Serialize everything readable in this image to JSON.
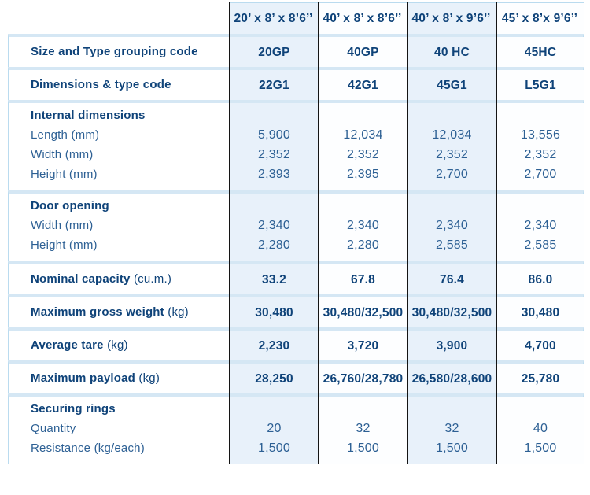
{
  "header": {
    "columns": [
      "20’ x 8’ x 8’6’’",
      "40’ x 8’ x 8’6’’",
      "40’ x 8’ x 9’6’’",
      "45’ x 8’x 9’6’’"
    ]
  },
  "rows": [
    {
      "type": "simple",
      "label": "Size and Type grouping code",
      "suffix": "",
      "bold_values": true,
      "values": [
        "20GP",
        "40GP",
        "40 HC",
        "45HC"
      ]
    },
    {
      "type": "simple",
      "label": "Dimensions & type code",
      "suffix": "",
      "bold_values": true,
      "values": [
        "22G1",
        "42G1",
        "45G1",
        "L5G1"
      ]
    },
    {
      "type": "group",
      "title": "Internal dimensions",
      "sub": [
        {
          "label": "Length (mm)",
          "values": [
            "5,900",
            "12,034",
            "12,034",
            "13,556"
          ]
        },
        {
          "label": "Width (mm)",
          "values": [
            "2,352",
            "2,352",
            "2,352",
            "2,352"
          ]
        },
        {
          "label": "Height (mm)",
          "values": [
            "2,393",
            "2,395",
            "2,700",
            "2,700"
          ]
        }
      ]
    },
    {
      "type": "group",
      "title": "Door opening",
      "sub": [
        {
          "label": "Width (mm)",
          "values": [
            "2,340",
            "2,340",
            "2,340",
            "2,340"
          ]
        },
        {
          "label": "Height (mm)",
          "values": [
            "2,280",
            "2,280",
            "2,585",
            "2,585"
          ]
        }
      ]
    },
    {
      "type": "simple",
      "label": "Nominal capacity",
      "suffix": " (cu.m.)",
      "bold_values": true,
      "values": [
        "33.2",
        "67.8",
        "76.4",
        "86.0"
      ]
    },
    {
      "type": "simple",
      "label": "Maximum gross weight",
      "suffix": " (kg)",
      "bold_values": true,
      "values": [
        "30,480",
        "30,480/32,500",
        "30,480/32,500",
        "30,480"
      ]
    },
    {
      "type": "simple",
      "label": "Average tare",
      "suffix": " (kg)",
      "bold_values": true,
      "values": [
        "2,230",
        "3,720",
        "3,900",
        "4,700"
      ]
    },
    {
      "type": "simple",
      "label": "Maximum payload",
      "suffix": " (kg)",
      "bold_values": true,
      "values": [
        "28,250",
        "26,760/28,780",
        "26,580/28,600",
        "25,780"
      ]
    },
    {
      "type": "group",
      "title": "Securing rings",
      "sub": [
        {
          "label": "Quantity",
          "values": [
            "20",
            "32",
            "32",
            "40"
          ]
        },
        {
          "label": "Resistance (kg/each)",
          "values": [
            "1,500",
            "1,500",
            "1,500",
            "1,500"
          ]
        }
      ]
    }
  ],
  "colors": {
    "bold_text": "#0f4379",
    "value_text": "#2d6094",
    "cell_blue": "#e8f1fa",
    "separator": "#d5e7f4",
    "outer_border": "#badbef",
    "column_line": "#141414"
  }
}
